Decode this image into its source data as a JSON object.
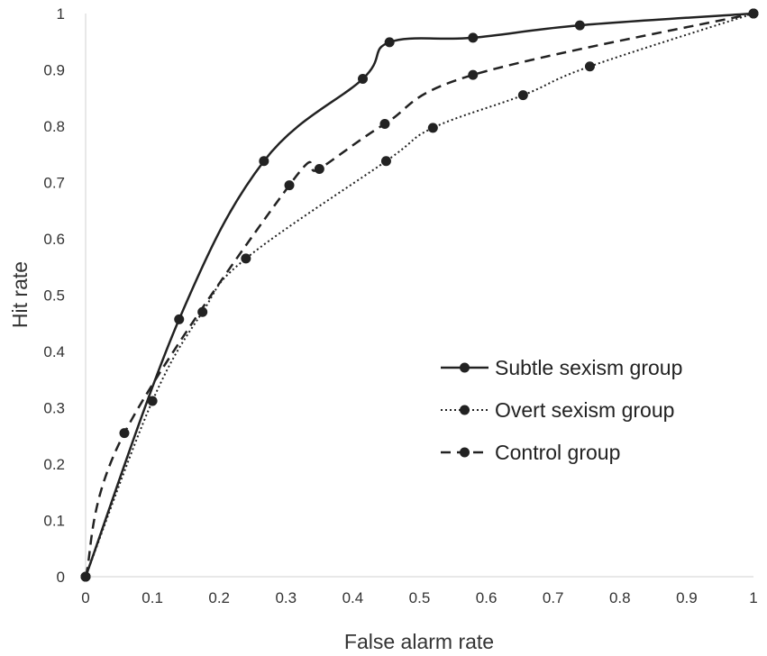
{
  "chart_data": {
    "type": "line",
    "title": "",
    "xlabel": "False alarm rate",
    "ylabel": "Hit rate",
    "xlim": [
      0,
      1
    ],
    "ylim": [
      0,
      1
    ],
    "xticks": [
      "0",
      "0.1",
      "0.2",
      "0.3",
      "0.4",
      "0.5",
      "0.6",
      "0.7",
      "0.8",
      "0.9",
      "1"
    ],
    "yticks": [
      "0",
      "0.1",
      "0.2",
      "0.3",
      "0.4",
      "0.5",
      "0.6",
      "0.7",
      "0.8",
      "0.9",
      "1"
    ],
    "grid": false,
    "legend_position": "right-center",
    "series": [
      {
        "name": "Subtle sexism group",
        "style": "solid",
        "color": "#222222",
        "points": [
          [
            0,
            0
          ],
          [
            0.14,
            0.457
          ],
          [
            0.267,
            0.738
          ],
          [
            0.415,
            0.884
          ],
          [
            0.455,
            0.949
          ],
          [
            0.58,
            0.957
          ],
          [
            0.74,
            0.979
          ],
          [
            1,
            1
          ]
        ]
      },
      {
        "name": "Overt sexism group",
        "style": "dotted",
        "color": "#222222",
        "points": [
          [
            0,
            0
          ],
          [
            0.1,
            0.312
          ],
          [
            0.175,
            0.47
          ],
          [
            0.24,
            0.565
          ],
          [
            0.45,
            0.738
          ],
          [
            0.52,
            0.797
          ],
          [
            0.655,
            0.855
          ],
          [
            0.755,
            0.906
          ],
          [
            1,
            1
          ]
        ]
      },
      {
        "name": "Control group",
        "style": "dashed",
        "color": "#222222",
        "points": [
          [
            0,
            0
          ],
          [
            0.058,
            0.255
          ],
          [
            0.305,
            0.695
          ],
          [
            0.35,
            0.724
          ],
          [
            0.448,
            0.804
          ],
          [
            0.58,
            0.891
          ],
          [
            1,
            1
          ]
        ]
      }
    ]
  }
}
